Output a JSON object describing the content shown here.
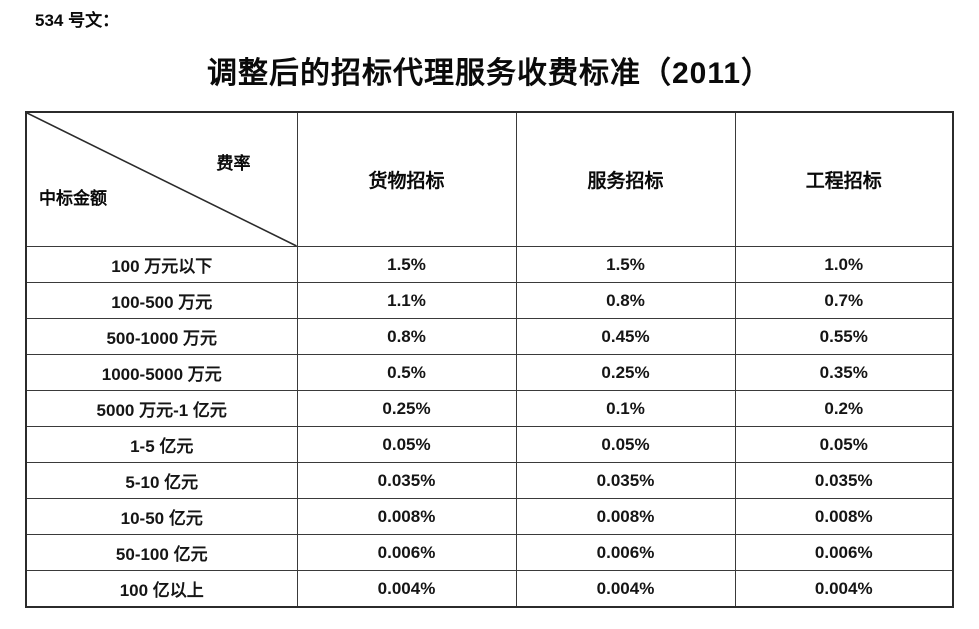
{
  "doc_number": "534 号文：",
  "title": "调整后的招标代理服务收费标准（2011）",
  "table": {
    "corner_top_right": "费率",
    "corner_bottom_left": "中标金额",
    "columns": [
      "货物招标",
      "服务招标",
      "工程招标"
    ],
    "rows": [
      {
        "label": "100 万元以下",
        "values": [
          "1.5%",
          "1.5%",
          "1.0%"
        ]
      },
      {
        "label": "100-500 万元",
        "values": [
          "1.1%",
          "0.8%",
          "0.7%"
        ]
      },
      {
        "label": "500-1000 万元",
        "values": [
          "0.8%",
          "0.45%",
          "0.55%"
        ]
      },
      {
        "label": "1000-5000 万元",
        "values": [
          "0.5%",
          "0.25%",
          "0.35%"
        ]
      },
      {
        "label": "5000 万元-1 亿元",
        "values": [
          "0.25%",
          "0.1%",
          "0.2%"
        ]
      },
      {
        "label": "1-5 亿元",
        "values": [
          "0.05%",
          "0.05%",
          "0.05%"
        ]
      },
      {
        "label": "5-10 亿元",
        "values": [
          "0.035%",
          "0.035%",
          "0.035%"
        ]
      },
      {
        "label": "10-50 亿元",
        "values": [
          "0.008%",
          "0.008%",
          "0.008%"
        ]
      },
      {
        "label": "50-100 亿元",
        "values": [
          "0.006%",
          "0.006%",
          "0.006%"
        ]
      },
      {
        "label": "100 亿以上",
        "values": [
          "0.004%",
          "0.004%",
          "0.004%"
        ]
      }
    ]
  }
}
